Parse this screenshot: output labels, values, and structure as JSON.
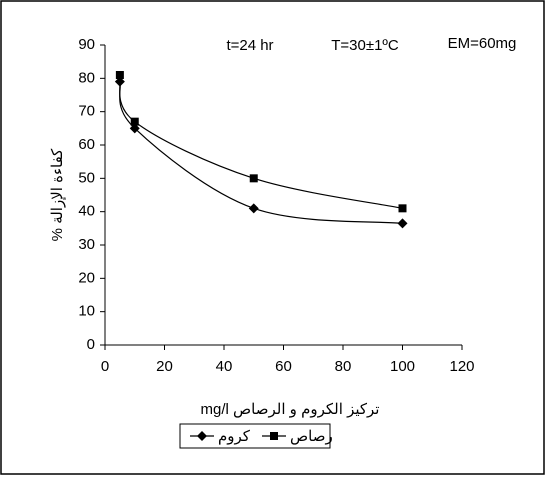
{
  "chart_data": {
    "type": "line",
    "annotations": [
      "t=24 hr",
      "T=30±1ºC",
      "EM=60mg"
    ],
    "x_label": "تركيز الكروم و الرصاص mg/l",
    "y_label": "كفاءة الإزالة %",
    "x": [
      5,
      10,
      50,
      100
    ],
    "series": [
      {
        "name": "كروم",
        "color": "#000000",
        "marker": "diamond",
        "values": [
          79,
          65,
          41,
          36.5
        ]
      },
      {
        "name": "رصاص",
        "color": "#000000",
        "marker": "square",
        "values": [
          81,
          67,
          50,
          41
        ]
      }
    ],
    "xlim": [
      0,
      120
    ],
    "xticks": [
      0,
      20,
      40,
      60,
      80,
      100,
      120
    ],
    "ylim": [
      0,
      90
    ],
    "yticks": [
      0,
      10,
      20,
      30,
      40,
      50,
      60,
      70,
      80,
      90
    ],
    "smooth": true
  }
}
